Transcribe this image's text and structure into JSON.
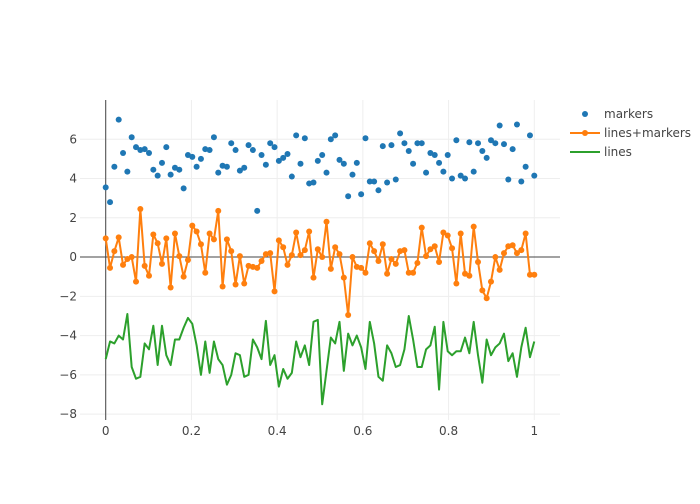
{
  "chart_data": {
    "type": "scatter",
    "title": "",
    "xlabel": "",
    "ylabel": "",
    "xlim": [
      -0.06,
      1.06
    ],
    "ylim": [
      -8.3,
      8.0
    ],
    "x_ticks": [
      0,
      0.2,
      0.4,
      0.6,
      0.8,
      1
    ],
    "x_tick_labels": [
      "0",
      "0.2",
      "0.4",
      "0.6",
      "0.8",
      "1"
    ],
    "y_ticks": [
      6,
      4,
      2,
      0,
      -2,
      -4,
      -6,
      -8
    ],
    "y_tick_labels": [
      "6",
      "4",
      "2",
      "0",
      "−2",
      "−4",
      "−6",
      "−8"
    ],
    "grid": true,
    "legend_position": "top-right",
    "series": [
      {
        "name": "markers",
        "mode": "markers",
        "color": "#1f77b4",
        "x": [
          0,
          0.0101,
          0.0202,
          0.0303,
          0.0404,
          0.0505,
          0.0606,
          0.0707,
          0.0808,
          0.0909,
          0.101,
          0.1111,
          0.1212,
          0.1313,
          0.1414,
          0.1515,
          0.1616,
          0.1717,
          0.1818,
          0.1919,
          0.202,
          0.2121,
          0.2222,
          0.2323,
          0.2424,
          0.2525,
          0.2626,
          0.2727,
          0.2828,
          0.2929,
          0.303,
          0.3131,
          0.3232,
          0.3333,
          0.3434,
          0.3535,
          0.3636,
          0.3737,
          0.3838,
          0.3939,
          0.404,
          0.4141,
          0.4242,
          0.4343,
          0.4444,
          0.4545,
          0.4646,
          0.4747,
          0.4848,
          0.4949,
          0.5051,
          0.5152,
          0.5253,
          0.5354,
          0.5455,
          0.5556,
          0.5657,
          0.5758,
          0.5859,
          0.596,
          0.6061,
          0.6162,
          0.6263,
          0.6364,
          0.6465,
          0.6566,
          0.6667,
          0.6768,
          0.6869,
          0.697,
          0.7071,
          0.7172,
          0.7273,
          0.7374,
          0.7475,
          0.7576,
          0.7677,
          0.7778,
          0.7879,
          0.798,
          0.8081,
          0.8182,
          0.8283,
          0.8384,
          0.8485,
          0.8586,
          0.8687,
          0.8788,
          0.8889,
          0.899,
          0.9091,
          0.9192,
          0.9293,
          0.9394,
          0.9495,
          0.9596,
          0.9697,
          0.9798,
          0.9899,
          1
        ],
        "y": [
          3.55,
          2.8,
          4.6,
          7.0,
          5.3,
          4.35,
          6.1,
          5.6,
          5.45,
          5.5,
          5.3,
          4.45,
          4.15,
          4.8,
          5.6,
          4.2,
          4.55,
          4.45,
          3.5,
          5.2,
          5.1,
          4.6,
          5.0,
          5.5,
          5.45,
          6.1,
          4.3,
          4.65,
          4.6,
          5.8,
          5.45,
          4.4,
          4.55,
          5.7,
          5.45,
          2.35,
          5.2,
          4.7,
          5.8,
          5.6,
          4.9,
          5.05,
          5.25,
          4.1,
          6.2,
          4.75,
          6.05,
          3.75,
          3.8,
          4.9,
          5.2,
          4.3,
          6.0,
          6.2,
          4.95,
          4.75,
          3.1,
          4.2,
          4.8,
          3.2,
          6.05,
          3.85,
          3.85,
          3.4,
          5.65,
          3.8,
          5.7,
          3.95,
          6.3,
          5.8,
          5.4,
          4.75,
          5.8,
          5.8,
          4.3,
          5.3,
          5.2,
          4.8,
          4.35,
          5.2,
          4.0,
          5.95,
          4.15,
          4.0,
          5.85,
          4.35,
          5.8,
          5.4,
          5.05,
          5.95,
          5.8,
          6.7,
          5.75,
          3.95,
          5.5,
          6.75,
          3.85,
          4.6,
          6.2,
          4.15
        ]
      },
      {
        "name": "lines+markers",
        "mode": "lines+markers",
        "color": "#ff7f0e",
        "x": [
          0,
          0.0101,
          0.0202,
          0.0303,
          0.0404,
          0.0505,
          0.0606,
          0.0707,
          0.0808,
          0.0909,
          0.101,
          0.1111,
          0.1212,
          0.1313,
          0.1414,
          0.1515,
          0.1616,
          0.1717,
          0.1818,
          0.1919,
          0.202,
          0.2121,
          0.2222,
          0.2323,
          0.2424,
          0.2525,
          0.2626,
          0.2727,
          0.2828,
          0.2929,
          0.303,
          0.3131,
          0.3232,
          0.3333,
          0.3434,
          0.3535,
          0.3636,
          0.3737,
          0.3838,
          0.3939,
          0.404,
          0.4141,
          0.4242,
          0.4343,
          0.4444,
          0.4545,
          0.4646,
          0.4747,
          0.4848,
          0.4949,
          0.5051,
          0.5152,
          0.5253,
          0.5354,
          0.5455,
          0.5556,
          0.5657,
          0.5758,
          0.5859,
          0.596,
          0.6061,
          0.6162,
          0.6263,
          0.6364,
          0.6465,
          0.6566,
          0.6667,
          0.6768,
          0.6869,
          0.697,
          0.7071,
          0.7172,
          0.7273,
          0.7374,
          0.7475,
          0.7576,
          0.7677,
          0.7778,
          0.7879,
          0.798,
          0.8081,
          0.8182,
          0.8283,
          0.8384,
          0.8485,
          0.8586,
          0.8687,
          0.8788,
          0.8889,
          0.899,
          0.9091,
          0.9192,
          0.9293,
          0.9394,
          0.9495,
          0.9596,
          0.9697,
          0.9798,
          0.9899,
          1
        ],
        "y": [
          0.95,
          -0.55,
          0.3,
          1.0,
          -0.4,
          -0.1,
          0.0,
          -1.25,
          2.45,
          -0.45,
          -0.95,
          1.15,
          0.7,
          -0.35,
          0.95,
          -1.55,
          1.2,
          0.05,
          -1.0,
          -0.15,
          1.6,
          1.3,
          0.65,
          -0.8,
          1.2,
          0.9,
          2.35,
          -1.5,
          0.9,
          0.3,
          -1.4,
          0.05,
          -1.35,
          -0.45,
          -0.5,
          -0.55,
          -0.2,
          0.15,
          0.2,
          -1.75,
          0.85,
          0.5,
          -0.4,
          0.1,
          1.25,
          0.1,
          0.35,
          1.3,
          -1.05,
          0.4,
          0.0,
          1.8,
          -0.6,
          0.5,
          0.15,
          -1.05,
          -2.95,
          0.0,
          -0.5,
          -0.55,
          -0.8,
          0.7,
          0.3,
          -0.2,
          0.65,
          -0.85,
          -0.1,
          -0.35,
          0.3,
          0.35,
          -0.8,
          -0.8,
          -0.3,
          1.5,
          0.05,
          0.4,
          0.55,
          -0.25,
          1.25,
          1.1,
          0.45,
          -1.35,
          1.2,
          -0.85,
          -0.95,
          1.55,
          -0.25,
          -1.7,
          -2.1,
          -1.25,
          0.0,
          -0.65,
          0.2,
          0.55,
          0.6,
          0.2,
          0.35,
          1.2,
          -0.9,
          -0.9
        ]
      },
      {
        "name": "lines",
        "mode": "lines",
        "color": "#2ca02c",
        "x": [
          0,
          0.0101,
          0.0202,
          0.0303,
          0.0404,
          0.0505,
          0.0606,
          0.0707,
          0.0808,
          0.0909,
          0.101,
          0.1111,
          0.1212,
          0.1313,
          0.1414,
          0.1515,
          0.1616,
          0.1717,
          0.1818,
          0.1919,
          0.202,
          0.2121,
          0.2222,
          0.2323,
          0.2424,
          0.2525,
          0.2626,
          0.2727,
          0.2828,
          0.2929,
          0.303,
          0.3131,
          0.3232,
          0.3333,
          0.3434,
          0.3535,
          0.3636,
          0.3737,
          0.3838,
          0.3939,
          0.404,
          0.4141,
          0.4242,
          0.4343,
          0.4444,
          0.4545,
          0.4646,
          0.4747,
          0.4848,
          0.4949,
          0.5051,
          0.5152,
          0.5253,
          0.5354,
          0.5455,
          0.5556,
          0.5657,
          0.5758,
          0.5859,
          0.596,
          0.6061,
          0.6162,
          0.6263,
          0.6364,
          0.6465,
          0.6566,
          0.6667,
          0.6768,
          0.6869,
          0.697,
          0.7071,
          0.7172,
          0.7273,
          0.7374,
          0.7475,
          0.7576,
          0.7677,
          0.7778,
          0.7879,
          0.798,
          0.8081,
          0.8182,
          0.8283,
          0.8384,
          0.8485,
          0.8586,
          0.8687,
          0.8788,
          0.8889,
          0.899,
          0.9091,
          0.9192,
          0.9293,
          0.9394,
          0.9495,
          0.9596,
          0.9697,
          0.9798,
          0.9899,
          1
        ],
        "y": [
          -5.2,
          -4.3,
          -4.4,
          -4.0,
          -4.2,
          -2.9,
          -5.6,
          -6.2,
          -6.1,
          -4.4,
          -4.7,
          -3.5,
          -5.5,
          -3.5,
          -5.0,
          -5.5,
          -4.2,
          -4.2,
          -3.6,
          -3.1,
          -3.4,
          -4.5,
          -6.0,
          -4.3,
          -5.9,
          -4.3,
          -5.2,
          -5.5,
          -6.5,
          -6.0,
          -4.9,
          -5.0,
          -6.1,
          -6.0,
          -4.2,
          -4.6,
          -5.2,
          -3.25,
          -5.5,
          -5.0,
          -6.6,
          -5.7,
          -6.2,
          -5.9,
          -4.3,
          -5.1,
          -4.5,
          -5.5,
          -3.3,
          -3.2,
          -7.5,
          -5.8,
          -4.1,
          -4.4,
          -3.3,
          -5.8,
          -3.9,
          -4.5,
          -4.0,
          -4.6,
          -5.7,
          -3.3,
          -4.4,
          -6.1,
          -6.3,
          -4.5,
          -4.9,
          -5.6,
          -5.5,
          -4.7,
          -3.0,
          -4.2,
          -5.6,
          -5.6,
          -4.7,
          -4.5,
          -3.55,
          -6.75,
          -3.3,
          -4.8,
          -5.0,
          -4.8,
          -4.8,
          -4.1,
          -4.9,
          -3.3,
          -5.0,
          -6.4,
          -4.2,
          -5.0,
          -4.6,
          -4.4,
          -3.9,
          -5.3,
          -4.9,
          -6.1,
          -4.6,
          -3.6,
          -5.1,
          -4.3
        ]
      }
    ]
  }
}
